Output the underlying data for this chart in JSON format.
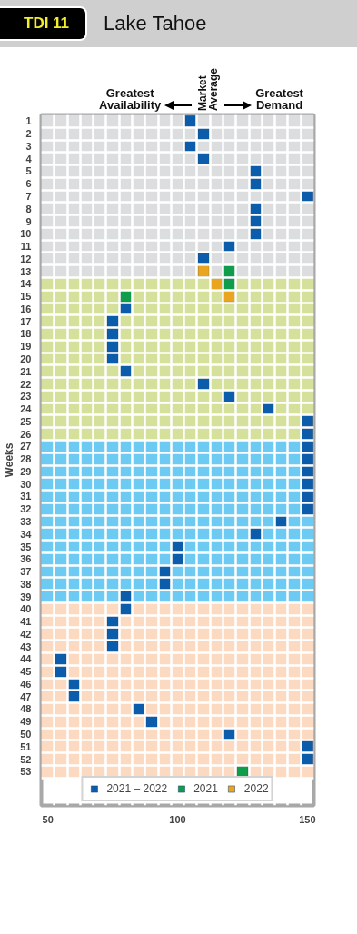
{
  "chart_data": {
    "type": "scatter",
    "orientation": "horizontal",
    "title": "Lake Tahoe",
    "subtitle": "TDI 11",
    "ylabel": "Weeks",
    "annotations": [
      "Greatest Availability",
      "Market Average",
      "Greatest Demand"
    ],
    "categories": [
      "1",
      "2",
      "3",
      "4",
      "5",
      "6",
      "7",
      "8",
      "9",
      "10",
      "11",
      "12",
      "13",
      "14",
      "15",
      "16",
      "17",
      "18",
      "19",
      "20",
      "21",
      "22",
      "23",
      "24",
      "25",
      "26",
      "27",
      "28",
      "29",
      "30",
      "31",
      "32",
      "33",
      "34",
      "35",
      "36",
      "37",
      "38",
      "39",
      "40",
      "41",
      "42",
      "43",
      "44",
      "45",
      "46",
      "47",
      "48",
      "49",
      "50",
      "51",
      "52",
      "53"
    ],
    "xlim": [
      47.5,
      152.5
    ],
    "xticks": [
      50,
      100,
      150
    ],
    "grid": true,
    "marker": "square",
    "legend": "bottom",
    "bands": [
      {
        "axis": "y",
        "from": "1",
        "to": "13",
        "color": "#dcdddf"
      },
      {
        "axis": "y",
        "from": "14",
        "to": "26",
        "color": "#d5e09b"
      },
      {
        "axis": "y",
        "from": "27",
        "to": "39",
        "color": "#6dcaf2"
      },
      {
        "axis": "y",
        "from": "40",
        "to": "53",
        "color": "#fcd9c1"
      }
    ],
    "series": [
      {
        "name": "2021 – 2022",
        "color": "#0b5dab",
        "values": [
          105,
          110,
          105,
          110,
          130,
          130,
          150,
          130,
          130,
          130,
          120,
          110,
          null,
          null,
          null,
          80,
          75,
          75,
          75,
          75,
          80,
          110,
          120,
          135,
          150,
          150,
          150,
          150,
          150,
          150,
          150,
          150,
          140,
          130,
          100,
          100,
          95,
          95,
          80,
          80,
          75,
          75,
          75,
          55,
          55,
          60,
          60,
          85,
          90,
          120,
          150,
          150,
          null
        ]
      },
      {
        "name": "2021",
        "color": "#0f9d4b",
        "values": [
          null,
          null,
          null,
          null,
          null,
          null,
          null,
          null,
          null,
          null,
          null,
          null,
          120,
          120,
          80,
          null,
          null,
          null,
          null,
          null,
          null,
          null,
          null,
          null,
          null,
          null,
          null,
          null,
          null,
          null,
          null,
          null,
          null,
          null,
          null,
          null,
          null,
          null,
          null,
          null,
          null,
          null,
          null,
          null,
          null,
          null,
          null,
          null,
          null,
          null,
          null,
          null,
          125
        ]
      },
      {
        "name": "2022",
        "color": "#e8a51d",
        "values": [
          null,
          null,
          null,
          null,
          null,
          null,
          null,
          null,
          null,
          null,
          null,
          null,
          110,
          115,
          120,
          null,
          null,
          null,
          null,
          null,
          null,
          null,
          null,
          null,
          null,
          null,
          null,
          null,
          null,
          null,
          null,
          null,
          null,
          null,
          null,
          null,
          null,
          null,
          null,
          null,
          null,
          null,
          null,
          null,
          null,
          null,
          null,
          null,
          null,
          null,
          null,
          null,
          null
        ]
      }
    ]
  }
}
